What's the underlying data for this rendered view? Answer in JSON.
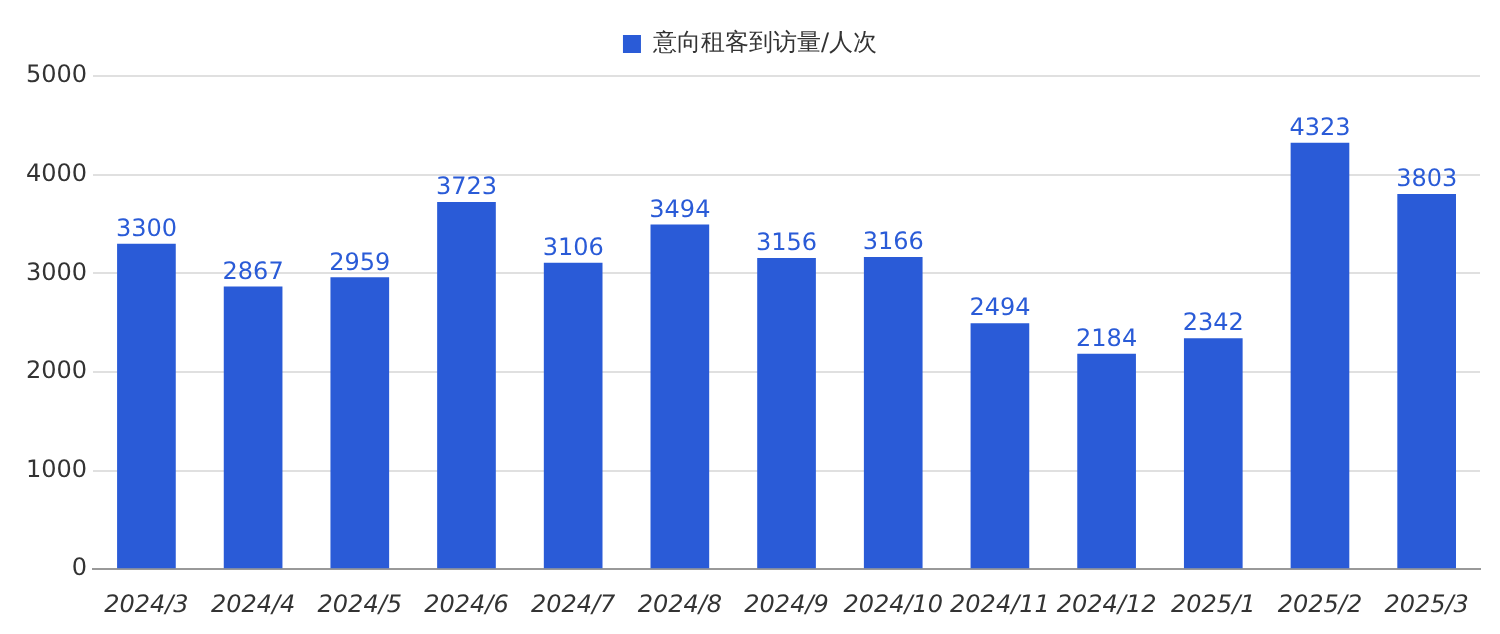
{
  "chart_data": {
    "type": "bar",
    "categories": [
      "2024/3",
      "2024/4",
      "2024/5",
      "2024/6",
      "2024/7",
      "2024/8",
      "2024/9",
      "2024/10",
      "2024/11",
      "2024/12",
      "2025/1",
      "2025/2",
      "2025/3"
    ],
    "series": [
      {
        "name": "意向租客到访量/人次",
        "color": "#2a5bd7",
        "values": [
          3300,
          2867,
          2959,
          3723,
          3106,
          3494,
          3156,
          3166,
          2494,
          2184,
          2342,
          4323,
          3803
        ]
      }
    ],
    "ylim": [
      0,
      5000
    ],
    "yticks": [
      0,
      1000,
      2000,
      3000,
      4000,
      5000
    ],
    "grid": "y",
    "legend": "top",
    "data_labels": true
  }
}
